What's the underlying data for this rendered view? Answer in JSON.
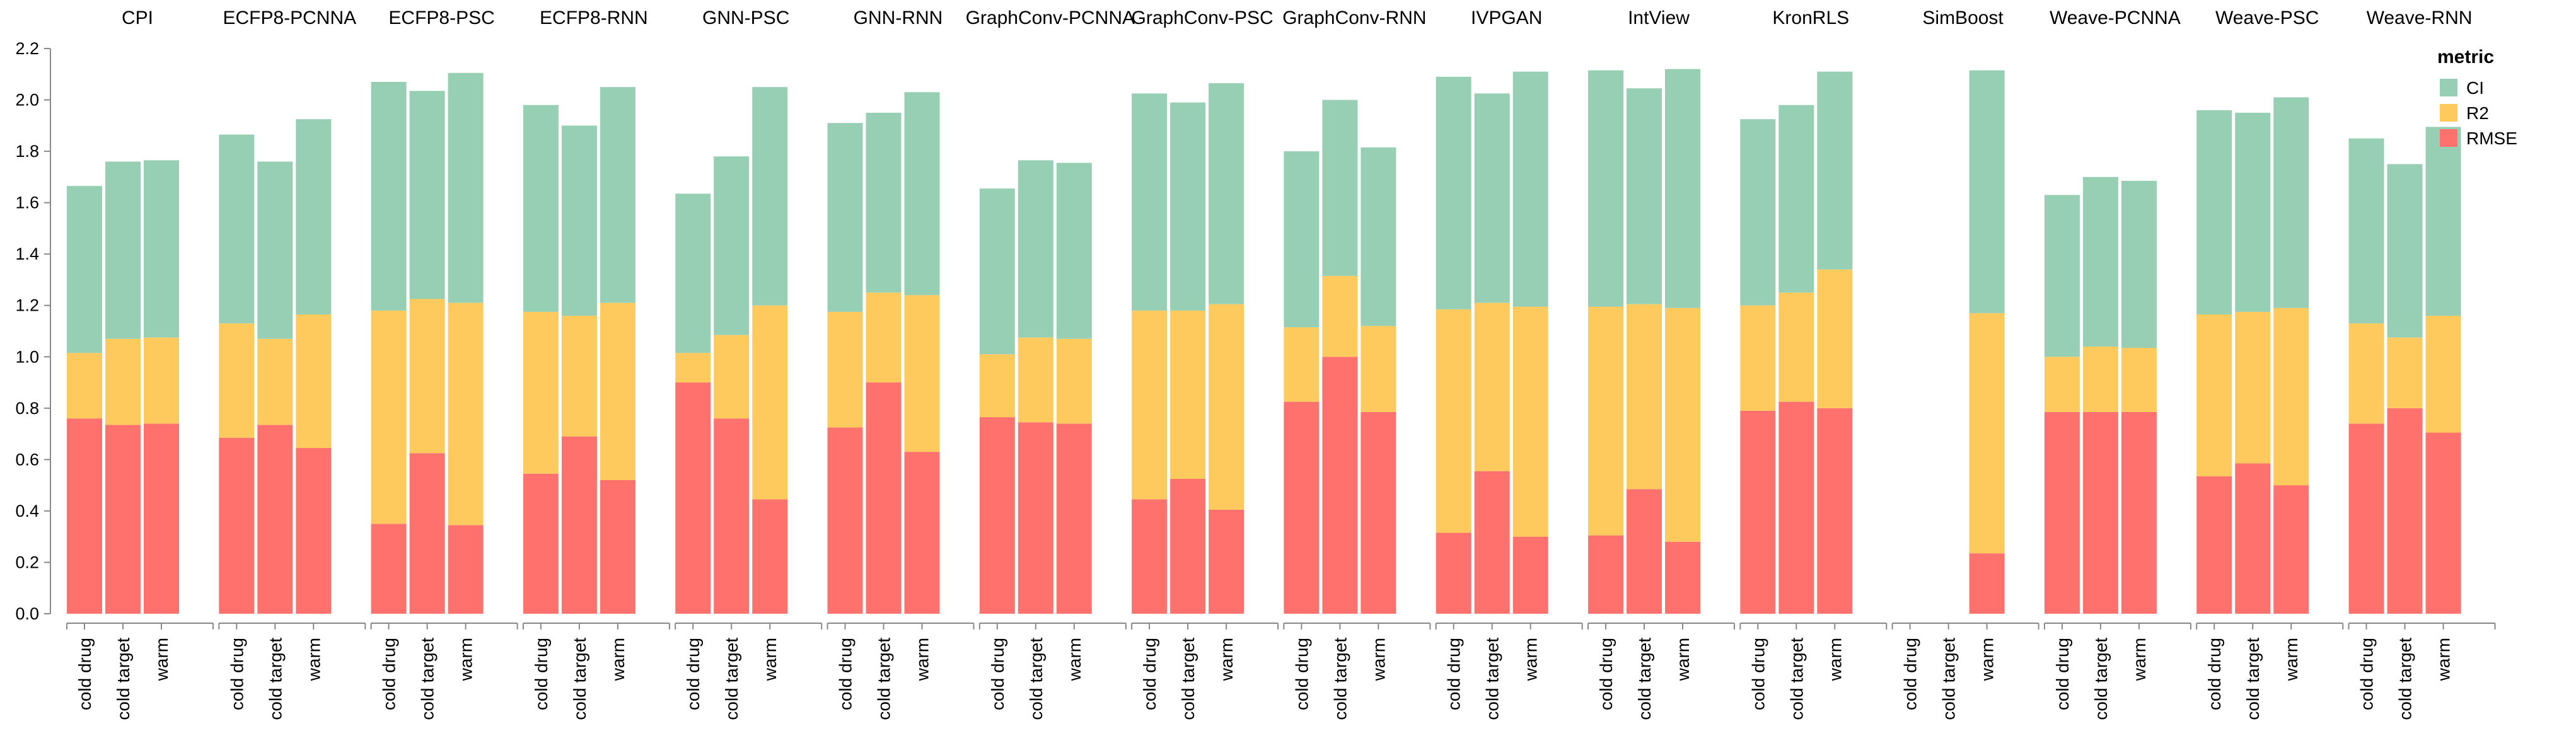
{
  "chart_data": {
    "type": "bar",
    "stacked": true,
    "faceted": true,
    "categories": [
      "cold drug",
      "cold target",
      "warm"
    ],
    "ylim": [
      0,
      2.2
    ],
    "y_ticks": [
      0.0,
      0.2,
      0.4,
      0.6,
      0.8,
      1.0,
      1.2,
      1.4,
      1.6,
      1.8,
      2.0,
      2.2
    ],
    "grid": false,
    "legend": {
      "title": "metric",
      "position": "top-right",
      "entries": [
        {
          "name": "CI",
          "color": "#97cfb5"
        },
        {
          "name": "R2",
          "color": "#ffca5d"
        },
        {
          "name": "RMSE",
          "color": "#ff716c"
        }
      ]
    },
    "stack_order": [
      "RMSE",
      "R2",
      "CI"
    ],
    "facets": [
      {
        "title": "CPI",
        "values": {
          "RMSE": [
            0.76,
            0.735,
            0.74
          ],
          "R2": [
            0.255,
            0.335,
            0.335
          ],
          "CI": [
            0.65,
            0.69,
            0.69
          ]
        }
      },
      {
        "title": "ECFP8-PCNNA",
        "values": {
          "RMSE": [
            0.685,
            0.735,
            0.645
          ],
          "R2": [
            0.445,
            0.335,
            0.52
          ],
          "CI": [
            0.735,
            0.69,
            0.76
          ]
        }
      },
      {
        "title": "ECFP8-PSC",
        "values": {
          "RMSE": [
            0.35,
            0.625,
            0.345
          ],
          "R2": [
            0.83,
            0.6,
            0.865
          ],
          "CI": [
            0.89,
            0.81,
            0.895
          ]
        }
      },
      {
        "title": "ECFP8-RNN",
        "values": {
          "RMSE": [
            0.545,
            0.69,
            0.52
          ],
          "R2": [
            0.63,
            0.47,
            0.69
          ],
          "CI": [
            0.805,
            0.74,
            0.84
          ]
        }
      },
      {
        "title": "GNN-PSC",
        "values": {
          "RMSE": [
            0.9,
            0.76,
            0.445
          ],
          "R2": [
            0.115,
            0.325,
            0.755
          ],
          "CI": [
            0.62,
            0.695,
            0.85
          ]
        }
      },
      {
        "title": "GNN-RNN",
        "values": {
          "RMSE": [
            0.725,
            0.9,
            0.63
          ],
          "R2": [
            0.45,
            0.35,
            0.61
          ],
          "CI": [
            0.735,
            0.7,
            0.79
          ]
        }
      },
      {
        "title": "GraphConv-PCNNA",
        "values": {
          "RMSE": [
            0.765,
            0.745,
            0.74
          ],
          "R2": [
            0.245,
            0.33,
            0.33
          ],
          "CI": [
            0.645,
            0.69,
            0.685
          ]
        }
      },
      {
        "title": "GraphConv-PSC",
        "values": {
          "RMSE": [
            0.445,
            0.525,
            0.405
          ],
          "R2": [
            0.735,
            0.655,
            0.8
          ],
          "CI": [
            0.845,
            0.81,
            0.86
          ]
        }
      },
      {
        "title": "GraphConv-RNN",
        "values": {
          "RMSE": [
            0.825,
            1.0,
            0.785
          ],
          "R2": [
            0.29,
            0.315,
            0.335
          ],
          "CI": [
            0.685,
            0.685,
            0.695
          ]
        }
      },
      {
        "title": "IVPGAN",
        "values": {
          "RMSE": [
            0.315,
            0.555,
            0.3
          ],
          "R2": [
            0.87,
            0.655,
            0.895
          ],
          "CI": [
            0.905,
            0.815,
            0.915
          ]
        }
      },
      {
        "title": "IntView",
        "values": {
          "RMSE": [
            0.305,
            0.485,
            0.28
          ],
          "R2": [
            0.89,
            0.72,
            0.91
          ],
          "CI": [
            0.92,
            0.84,
            0.93
          ]
        }
      },
      {
        "title": "KronRLS",
        "values": {
          "RMSE": [
            0.79,
            0.825,
            0.8
          ],
          "R2": [
            0.41,
            0.425,
            0.54
          ],
          "CI": [
            0.725,
            0.73,
            0.77
          ]
        }
      },
      {
        "title": "SimBoost",
        "values": {
          "RMSE": [
            0,
            0,
            0.235
          ],
          "R2": [
            0,
            0,
            0.935
          ],
          "CI": [
            0,
            0,
            0.945
          ]
        }
      },
      {
        "title": "Weave-PCNNA",
        "values": {
          "RMSE": [
            0.785,
            0.785,
            0.785
          ],
          "R2": [
            0.215,
            0.255,
            0.25
          ],
          "CI": [
            0.63,
            0.66,
            0.65
          ]
        }
      },
      {
        "title": "Weave-PSC",
        "values": {
          "RMSE": [
            0.535,
            0.585,
            0.5
          ],
          "R2": [
            0.63,
            0.59,
            0.69
          ],
          "CI": [
            0.795,
            0.775,
            0.82
          ]
        }
      },
      {
        "title": "Weave-RNN",
        "values": {
          "RMSE": [
            0.74,
            0.8,
            0.705
          ],
          "R2": [
            0.39,
            0.275,
            0.455
          ],
          "CI": [
            0.72,
            0.675,
            0.735
          ]
        }
      }
    ]
  }
}
